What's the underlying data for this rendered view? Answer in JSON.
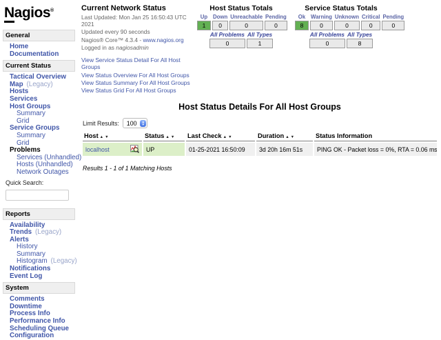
{
  "colors": {
    "link_blue": "#4056a8",
    "ok_green_box": "#63b053",
    "ok_row_bg": "#dcefc8",
    "row_gray_bg": "#f0f0f0",
    "totals_box_bg": "#e9e9e9",
    "section_bar_bg": "#efefef",
    "legacy_label": "#98a4c9"
  },
  "logo": {
    "initial": "N",
    "rest": "agios",
    "mark": "®"
  },
  "header": {
    "title": "Current Network Status",
    "last_updated": "Last Updated: Mon Jan 25 16:50:43 UTC 2021",
    "update_interval": "Updated every 90 seconds",
    "version_prefix": "Nagios® Core™ 4.3.4 - ",
    "version_link": "www.nagios.org",
    "logged_in_prefix": "Logged in as ",
    "logged_in_user": "nagiosadmin",
    "view_links": [
      "View Service Status Detail For All Host Groups",
      "View Status Overview For All Host Groups",
      "View Status Summary For All Host Groups",
      "View Status Grid For All Host Groups"
    ]
  },
  "host_totals": {
    "title": "Host Status Totals",
    "columns": [
      {
        "label": "Up",
        "value": "1",
        "green": true
      },
      {
        "label": "Down",
        "value": "0"
      },
      {
        "label": "Unreachable",
        "value": "0"
      },
      {
        "label": "Pending",
        "value": "0"
      }
    ],
    "summary": [
      {
        "label": "All Problems",
        "value": "0"
      },
      {
        "label": "All Types",
        "value": "1"
      }
    ]
  },
  "service_totals": {
    "title": "Service Status Totals",
    "columns": [
      {
        "label": "Ok",
        "value": "8",
        "green": true
      },
      {
        "label": "Warning",
        "value": "0"
      },
      {
        "label": "Unknown",
        "value": "0"
      },
      {
        "label": "Critical",
        "value": "0"
      },
      {
        "label": "Pending",
        "value": "0"
      }
    ],
    "summary": [
      {
        "label": "All Problems",
        "value": "0"
      },
      {
        "label": "All Types",
        "value": "8"
      }
    ]
  },
  "main": {
    "title": "Host Status Details For All Host Groups",
    "limit_label": "Limit Results:",
    "limit_value": "100",
    "table": {
      "columns": [
        {
          "label": "Host",
          "sortable": true
        },
        {
          "label": "Status",
          "sortable": true
        },
        {
          "label": "Last Check",
          "sortable": true
        },
        {
          "label": "Duration",
          "sortable": true
        },
        {
          "label": "Status Information",
          "sortable": false
        }
      ],
      "rows": [
        {
          "host": "localhost",
          "status": "UP",
          "last_check": "01-25-2021 16:50:09",
          "duration": "3d 20h 16m 51s",
          "info": "PING OK - Packet loss = 0%, RTA = 0.06 ms"
        }
      ]
    },
    "results_text": "Results 1 - 1 of 1 Matching Hosts"
  },
  "sidebar": {
    "search_label": "Quick Search:",
    "sections": [
      {
        "title": "General",
        "items": [
          {
            "label": "Home"
          },
          {
            "label": "Documentation"
          }
        ]
      },
      {
        "title": "Current Status",
        "search": true,
        "items": [
          {
            "label": "Tactical Overview"
          },
          {
            "label": "Map",
            "suffix": "(Legacy)"
          },
          {
            "label": "Hosts"
          },
          {
            "label": "Services"
          },
          {
            "label": "Host Groups"
          },
          {
            "label": "Summary",
            "indent": 2
          },
          {
            "label": "Grid",
            "indent": 2
          },
          {
            "label": "Service Groups"
          },
          {
            "label": "Summary",
            "indent": 2
          },
          {
            "label": "Grid",
            "indent": 2
          },
          {
            "label": "Problems",
            "link": false
          },
          {
            "label": "Services (Unhandled)",
            "indent": 2
          },
          {
            "label": "Hosts (Unhandled)",
            "indent": 2
          },
          {
            "label": "Network Outages",
            "indent": 2
          }
        ]
      },
      {
        "title": "Reports",
        "items": [
          {
            "label": "Availability"
          },
          {
            "label": "Trends",
            "suffix": "(Legacy)"
          },
          {
            "label": "Alerts"
          },
          {
            "label": "History",
            "indent": 2
          },
          {
            "label": "Summary",
            "indent": 2
          },
          {
            "label": "Histogram",
            "indent": 2,
            "suffix": "(Legacy)"
          },
          {
            "label": "Notifications"
          },
          {
            "label": "Event Log"
          }
        ]
      },
      {
        "title": "System",
        "items": [
          {
            "label": "Comments"
          },
          {
            "label": "Downtime"
          },
          {
            "label": "Process Info"
          },
          {
            "label": "Performance Info"
          },
          {
            "label": "Scheduling Queue"
          },
          {
            "label": "Configuration"
          }
        ]
      }
    ]
  }
}
